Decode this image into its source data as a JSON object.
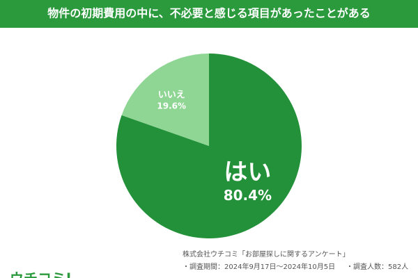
{
  "chart_data": {
    "type": "pie",
    "title": "物件の初期費用の中に、不必要と感じる項目があったことがある",
    "categories": [
      "はい",
      "いいえ"
    ],
    "values": [
      80.4,
      19.6
    ],
    "value_labels": [
      "80.4%",
      "19.6%"
    ],
    "colors": [
      "#23913a",
      "#8fd694"
    ],
    "source": [
      "株式会社ウチコミ「お部屋探しに関するアンケート」",
      "・調査期間：2024年9月17日〜2024年10月5日",
      "・調査人数：582人"
    ],
    "logo": "ウチコミ!"
  }
}
